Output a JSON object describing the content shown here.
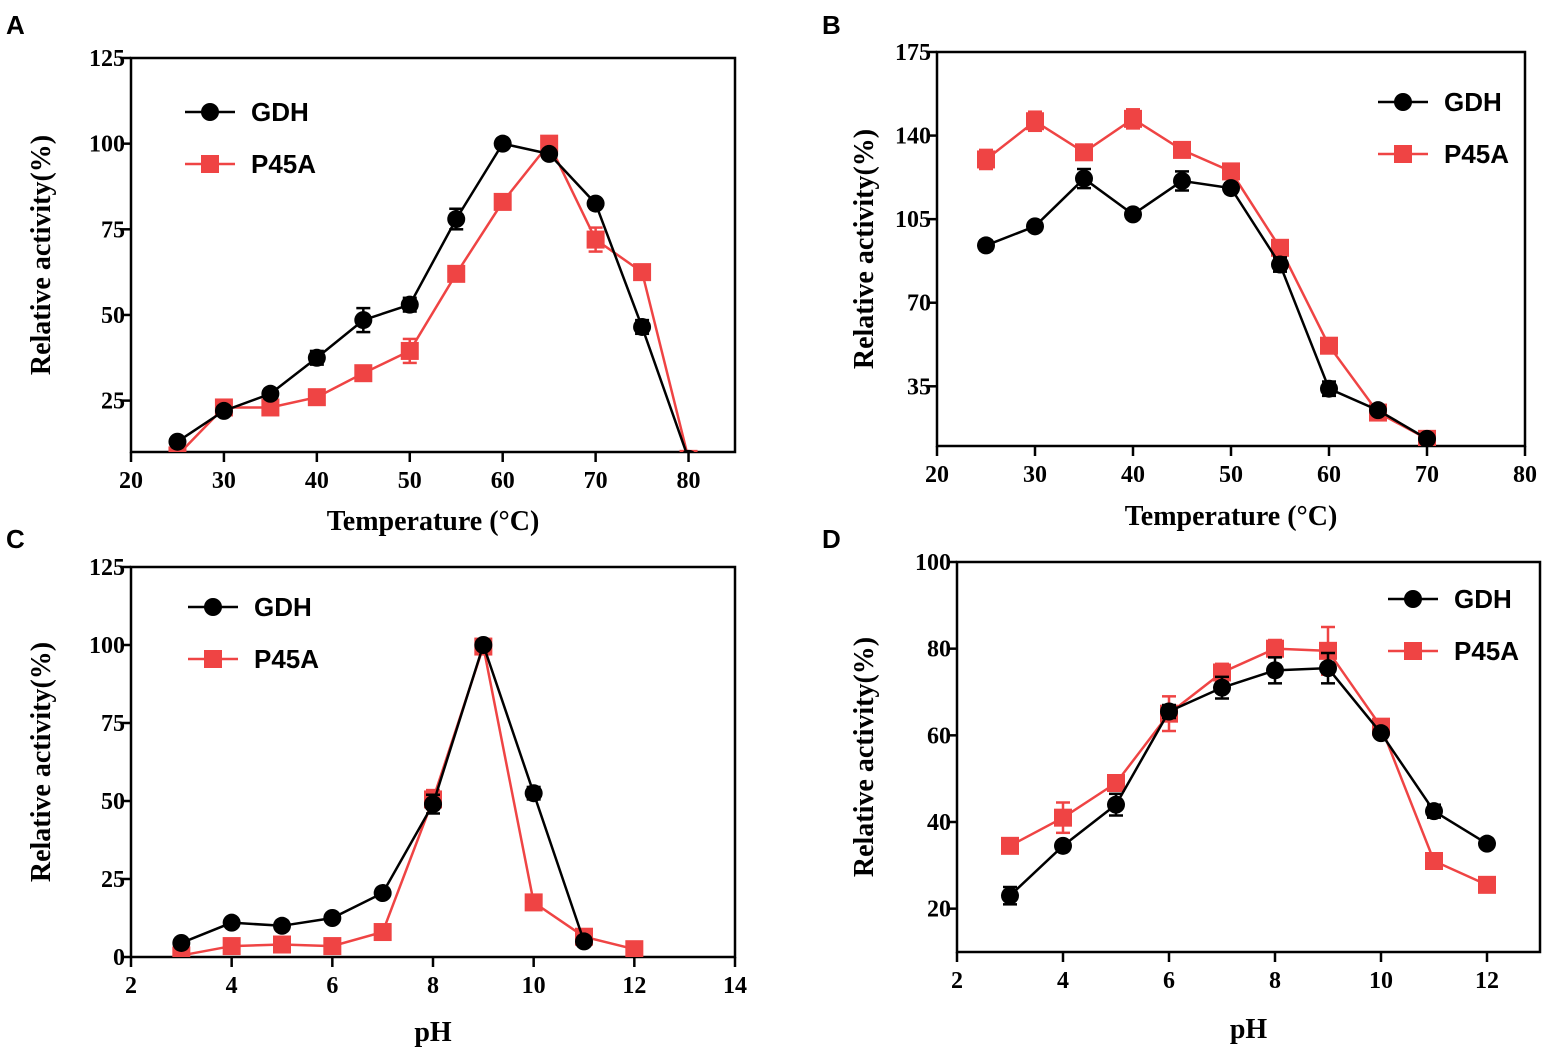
{
  "colors": {
    "gdh": "#000000",
    "p45a": "#ef4444",
    "axis": "#000000"
  },
  "chart_data": [
    {
      "panel": "A",
      "type": "line",
      "xlabel": "Temperature (°C)",
      "ylabel": "Relative activity(%)",
      "xlim": [
        20,
        85
      ],
      "ylim": [
        10,
        125
      ],
      "xticks": [
        20,
        30,
        40,
        50,
        60,
        70,
        80
      ],
      "yticks": [
        25,
        50,
        75,
        100,
        125
      ],
      "legend_position": "top-left",
      "series": [
        {
          "name": "GDH",
          "x": [
            25,
            30,
            35,
            40,
            45,
            50,
            55,
            60,
            65,
            70,
            75,
            80
          ],
          "values": [
            13,
            22,
            27,
            37.5,
            48.5,
            53,
            78,
            100,
            97,
            82.5,
            46.5,
            8
          ],
          "errors": [
            1,
            1,
            1,
            2,
            3.5,
            2,
            3,
            1,
            1,
            1,
            2,
            0
          ]
        },
        {
          "name": "P45A",
          "x": [
            25,
            30,
            35,
            40,
            45,
            50,
            55,
            60,
            65,
            70,
            75,
            80
          ],
          "values": [
            9,
            23,
            23,
            26,
            33,
            39.5,
            62,
            83,
            100,
            72,
            62.5,
            8
          ],
          "errors": [
            0,
            1,
            1,
            1,
            2,
            3.5,
            1,
            2,
            1,
            3.5,
            1,
            0
          ]
        }
      ]
    },
    {
      "panel": "B",
      "type": "line",
      "xlabel": "Temperature (°C)",
      "ylabel": "Relative activity(%)",
      "xlim": [
        20,
        80
      ],
      "ylim": [
        10,
        175
      ],
      "xticks": [
        20,
        30,
        40,
        50,
        60,
        70,
        80
      ],
      "yticks": [
        35,
        70,
        105,
        140,
        175
      ],
      "legend_position": "top-right",
      "series": [
        {
          "name": "GDH",
          "x": [
            25,
            30,
            35,
            40,
            45,
            50,
            55,
            60,
            65,
            70
          ],
          "values": [
            94,
            102,
            122,
            107,
            121,
            118,
            86,
            34,
            25,
            13
          ],
          "errors": [
            2,
            1,
            4,
            1,
            4,
            2,
            3,
            3,
            1,
            1
          ]
        },
        {
          "name": "P45A",
          "x": [
            25,
            30,
            35,
            40,
            45,
            50,
            55,
            60,
            65,
            70
          ],
          "values": [
            130,
            146,
            133,
            147,
            134,
            125,
            93,
            52,
            24,
            13
          ],
          "errors": [
            4,
            4,
            1,
            4,
            2,
            2,
            2,
            2,
            1,
            1
          ]
        }
      ]
    },
    {
      "panel": "C",
      "type": "line",
      "xlabel": "pH",
      "ylabel": "Relative activity(%)",
      "xlim": [
        2,
        14
      ],
      "ylim": [
        0,
        125
      ],
      "xticks": [
        2,
        4,
        6,
        8,
        10,
        12,
        14
      ],
      "yticks": [
        0,
        25,
        50,
        75,
        100,
        125
      ],
      "legend_position": "top-left",
      "series": [
        {
          "name": "GDH",
          "x": [
            3,
            4,
            5,
            6,
            7,
            8,
            9,
            10,
            11
          ],
          "values": [
            4.5,
            11,
            10,
            12.5,
            20.5,
            49,
            100,
            52.5,
            5
          ],
          "errors": [
            0.5,
            0.5,
            0.5,
            0.5,
            0.5,
            3,
            1,
            2,
            0.5
          ]
        },
        {
          "name": "P45A",
          "x": [
            3,
            4,
            5,
            6,
            7,
            8,
            9,
            10,
            11,
            12
          ],
          "values": [
            0.5,
            3.5,
            4,
            3.5,
            8,
            50.5,
            99.5,
            17.5,
            6.5,
            2.5
          ],
          "errors": [
            0.3,
            0.5,
            0.5,
            0.5,
            1,
            3,
            1,
            1,
            1,
            0.5
          ]
        }
      ]
    },
    {
      "panel": "D",
      "type": "line",
      "xlabel": "pH",
      "ylabel": "Relative activity(%)",
      "xlim": [
        2,
        13
      ],
      "ylim": [
        10,
        100
      ],
      "xticks": [
        2,
        4,
        6,
        8,
        10,
        12
      ],
      "yticks": [
        20,
        40,
        60,
        80,
        100
      ],
      "legend_position": "top-right",
      "series": [
        {
          "name": "GDH",
          "x": [
            3,
            4,
            5,
            6,
            7,
            8,
            9,
            10,
            11,
            12
          ],
          "values": [
            23,
            34.5,
            44,
            65.5,
            71,
            75,
            75.5,
            60.5,
            42.5,
            35
          ],
          "errors": [
            2,
            1,
            2.5,
            1.5,
            2.5,
            3,
            3.5,
            1,
            1.5,
            0.5
          ]
        },
        {
          "name": "P45A",
          "x": [
            3,
            4,
            5,
            6,
            7,
            8,
            9,
            10,
            11,
            12
          ],
          "values": [
            34.5,
            41,
            49,
            65,
            74.5,
            80,
            79.5,
            62,
            31,
            25.5
          ],
          "errors": [
            0.5,
            3.5,
            1,
            4,
            2,
            2,
            5.5,
            1,
            0.5,
            0.5
          ]
        }
      ]
    }
  ]
}
